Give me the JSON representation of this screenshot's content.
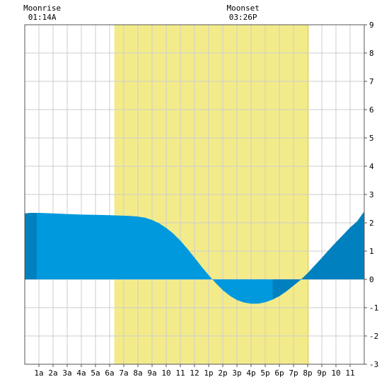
{
  "moon": {
    "rise_label": "Moonrise",
    "rise_time": "01:14A",
    "rise_hour": 1.233,
    "set_label": "Moonset",
    "set_time": "03:26P",
    "set_hour": 15.433
  },
  "chart_data": {
    "type": "area",
    "title": "",
    "xlabel": "",
    "ylabel": "",
    "xlim": [
      0,
      24
    ],
    "ylim": [
      -3,
      9
    ],
    "grid": true,
    "x_ticks": [
      {
        "x": 1,
        "label": "1a"
      },
      {
        "x": 2,
        "label": "2a"
      },
      {
        "x": 3,
        "label": "3a"
      },
      {
        "x": 4,
        "label": "4a"
      },
      {
        "x": 5,
        "label": "5a"
      },
      {
        "x": 6,
        "label": "6a"
      },
      {
        "x": 7,
        "label": "7a"
      },
      {
        "x": 8,
        "label": "8a"
      },
      {
        "x": 9,
        "label": "9a"
      },
      {
        "x": 10,
        "label": "10"
      },
      {
        "x": 11,
        "label": "11"
      },
      {
        "x": 12,
        "label": "12"
      },
      {
        "x": 13,
        "label": "1p"
      },
      {
        "x": 14,
        "label": "2p"
      },
      {
        "x": 15,
        "label": "3p"
      },
      {
        "x": 16,
        "label": "4p"
      },
      {
        "x": 17,
        "label": "5p"
      },
      {
        "x": 18,
        "label": "6p"
      },
      {
        "x": 19,
        "label": "7p"
      },
      {
        "x": 20,
        "label": "8p"
      },
      {
        "x": 21,
        "label": "9p"
      },
      {
        "x": 22,
        "label": "10"
      },
      {
        "x": 23,
        "label": "11"
      }
    ],
    "y_ticks": [
      {
        "y": 9,
        "label": "9"
      },
      {
        "y": 8,
        "label": "8"
      },
      {
        "y": 7,
        "label": "7"
      },
      {
        "y": 6,
        "label": "6"
      },
      {
        "y": 5,
        "label": "5"
      },
      {
        "y": 4,
        "label": "4"
      },
      {
        "y": 3,
        "label": "3"
      },
      {
        "y": 2,
        "label": "2"
      },
      {
        "y": 1,
        "label": "1"
      },
      {
        "y": 0,
        "label": "0"
      },
      {
        "y": -1,
        "label": "-1"
      },
      {
        "y": -2,
        "label": "-2"
      },
      {
        "y": -3,
        "label": "-3"
      }
    ],
    "daylight": {
      "start_hour": 6.33,
      "end_hour": 20.1
    },
    "night_bands": [
      {
        "start_hour": 0,
        "end_hour": 0.85
      },
      {
        "start_hour": 17.53,
        "end_hour": 20.1
      },
      {
        "start_hour": 20.1,
        "end_hour": 24
      }
    ],
    "series": [
      {
        "x": [
          0,
          0.5,
          1,
          1.5,
          2,
          3,
          4,
          5,
          6,
          6.5,
          7,
          7.5,
          8,
          8.5,
          9,
          9.5,
          10,
          10.5,
          11,
          11.5,
          12,
          12.5,
          13,
          13.5,
          14,
          14.5,
          15,
          15.5,
          16,
          16.5,
          17,
          17.5,
          18,
          18.5,
          19,
          19.5,
          20,
          20.5,
          21,
          21.5,
          22,
          22.5,
          23,
          23.5,
          24
        ],
        "values": [
          2.33,
          2.35,
          2.35,
          2.34,
          2.33,
          2.31,
          2.29,
          2.28,
          2.27,
          2.26,
          2.25,
          2.24,
          2.22,
          2.18,
          2.1,
          1.98,
          1.82,
          1.62,
          1.37,
          1.08,
          0.77,
          0.45,
          0.15,
          -0.13,
          -0.38,
          -0.58,
          -0.73,
          -0.82,
          -0.86,
          -0.86,
          -0.81,
          -0.72,
          -0.59,
          -0.42,
          -0.22,
          -0.02,
          0.22,
          0.49,
          0.76,
          1.04,
          1.31,
          1.57,
          1.83,
          2.05,
          2.4
        ]
      }
    ],
    "colors": {
      "daylight": "#f3eb8a",
      "tide": "#0099dd",
      "tide_night": "#0080bf",
      "grid": "#cccccc",
      "frame": "#555555"
    }
  }
}
